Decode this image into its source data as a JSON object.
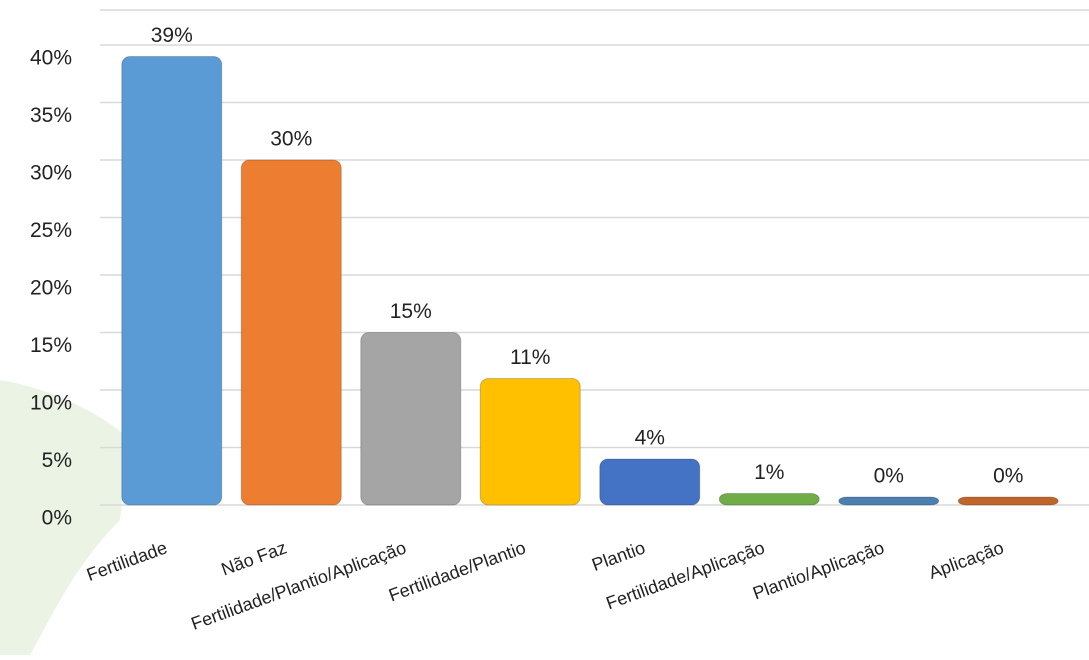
{
  "chart_data": {
    "type": "bar",
    "categories": [
      "Fertilidade",
      "Não Faz",
      "Fertilidade/Plantio/Aplicação",
      "Fertilidade/Plantio",
      "Plantio",
      "Fertilidade/Aplicação",
      "Plantio/Aplicação",
      "Aplicação"
    ],
    "values": [
      39,
      30,
      15,
      11,
      4,
      1,
      0,
      0
    ],
    "value_labels": [
      "39%",
      "30%",
      "15%",
      "11%",
      "4%",
      "1%",
      "0%",
      "0%"
    ],
    "colors": [
      "#5b9bd5",
      "#ed7d31",
      "#a5a5a5",
      "#ffc000",
      "#4472c4",
      "#70ad47",
      "#4a7fb0",
      "#c0652a"
    ],
    "ylim": [
      0,
      40
    ],
    "yticks": [
      {
        "value": 0,
        "label": "0%"
      },
      {
        "value": 5,
        "label": "5%"
      },
      {
        "value": 10,
        "label": "10%"
      },
      {
        "value": 15,
        "label": "15%"
      },
      {
        "value": 20,
        "label": "20%"
      },
      {
        "value": 25,
        "label": "25%"
      },
      {
        "value": 30,
        "label": "30%"
      },
      {
        "value": 35,
        "label": "35%"
      },
      {
        "value": 40,
        "label": "40%"
      }
    ],
    "grid": true
  }
}
